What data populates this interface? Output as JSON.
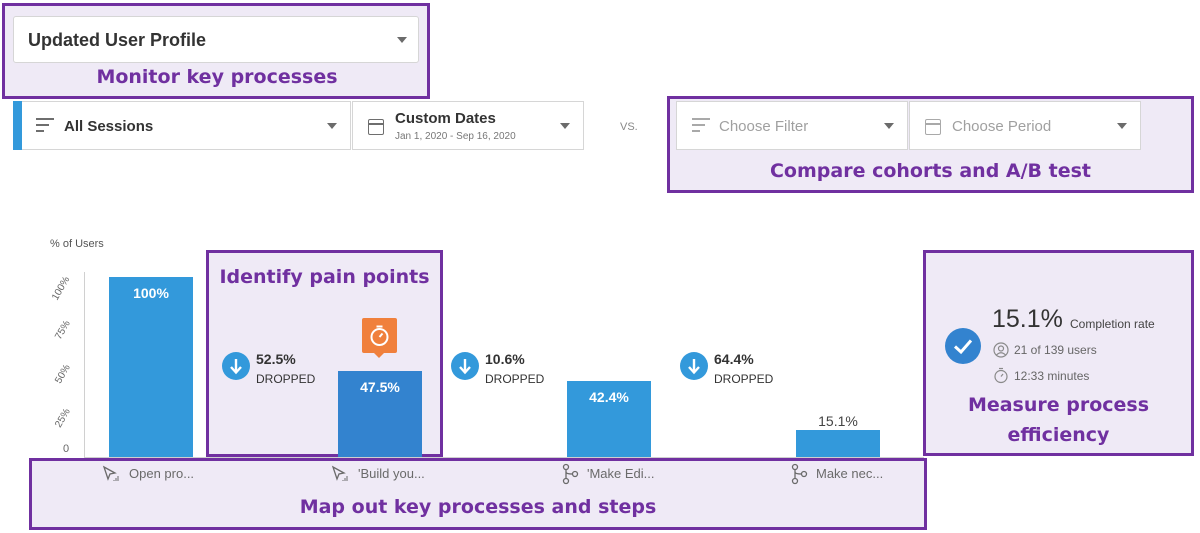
{
  "profile_select": {
    "value": "Updated User Profile"
  },
  "filters": {
    "primary": {
      "label": "All Sessions"
    },
    "dates": {
      "label": "Custom Dates",
      "range": "Jan 1, 2020 - Sep 16, 2020"
    },
    "vs_label": "VS.",
    "compare_filter": {
      "placeholder": "Choose Filter"
    },
    "compare_period": {
      "placeholder": "Choose Period"
    }
  },
  "callouts": {
    "monitor": "Monitor key processes",
    "compare": "Compare cohorts and A/B test",
    "pain_points": "Identify pain points",
    "efficiency_line1": "Measure process",
    "efficiency_line2": "efficiency",
    "map_out": "Map out key processes and steps"
  },
  "chart": {
    "y_title": "% of Users",
    "y_ticks": [
      "100%",
      "75%",
      "50%",
      "25%",
      "0"
    ]
  },
  "chart_data": {
    "type": "bar",
    "categories": [
      "Open pro...",
      "'Build you...",
      "'Make Edi...",
      "Make nec..."
    ],
    "values": [
      100,
      47.5,
      42.4,
      15.1
    ],
    "value_labels": [
      "100%",
      "47.5%",
      "42.4%",
      "15.1%"
    ],
    "ylabel": "% of Users",
    "ylim": [
      0,
      100
    ],
    "dropped": [
      {
        "pct": "52.5%",
        "label": "DROPPED"
      },
      {
        "pct": "10.6%",
        "label": "DROPPED"
      },
      {
        "pct": "64.4%",
        "label": "DROPPED"
      }
    ]
  },
  "steps": [
    {
      "label": "Open pro...",
      "icon": "cursor-click-icon"
    },
    {
      "label": "'Build you...",
      "icon": "cursor-click-icon"
    },
    {
      "label": "'Make Edi...",
      "icon": "branch-icon"
    },
    {
      "label": "Make nec...",
      "icon": "branch-icon"
    }
  ],
  "summary": {
    "rate": "15.1%",
    "rate_label": "Completion rate",
    "users": "21 of 139 users",
    "time": "12:33 minutes"
  },
  "colors": {
    "accent": "#3399db",
    "callout_border": "#7030a0",
    "callout_fill": "#efeaf6",
    "timer_badge": "#f0803c"
  }
}
